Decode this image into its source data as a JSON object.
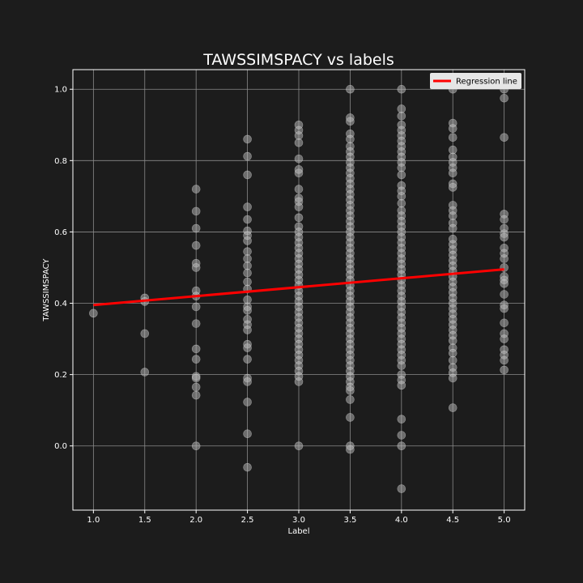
{
  "chart_data": {
    "type": "scatter",
    "title": "TAWSSIMSPACY vs labels",
    "xlabel": "Label",
    "ylabel": "TAWSSIMSPACY",
    "xlim": [
      0.8,
      5.2
    ],
    "ylim": [
      -0.18,
      1.055
    ],
    "xticks": [
      "1.0",
      "1.5",
      "2.0",
      "2.5",
      "3.0",
      "3.5",
      "4.0",
      "4.5",
      "5.0"
    ],
    "yticks": [
      "0.0",
      "0.2",
      "0.4",
      "0.6",
      "0.8",
      "1.0"
    ],
    "grid": true,
    "legend": {
      "position": "top-right",
      "entries": [
        "Regression line"
      ]
    },
    "colors": {
      "background": "#1c1c1c",
      "plot_background": "#1c1c1c",
      "points": "#bdbdbd",
      "regression": "#ff0000",
      "grid": "#8a8a8a",
      "spines": "#ffffff",
      "legend_bg": "#e6e6e6"
    },
    "regression_line": {
      "x": [
        1.0,
        5.0
      ],
      "y": [
        0.395,
        0.495
      ]
    },
    "points": [
      {
        "x": 1.0,
        "y": 0.372
      },
      {
        "x": 1.5,
        "y": 0.415
      },
      {
        "x": 1.5,
        "y": 0.405
      },
      {
        "x": 1.5,
        "y": 0.315
      },
      {
        "x": 1.5,
        "y": 0.207
      },
      {
        "x": 2.0,
        "y": 0.72
      },
      {
        "x": 2.0,
        "y": 0.658
      },
      {
        "x": 2.0,
        "y": 0.61
      },
      {
        "x": 2.0,
        "y": 0.562
      },
      {
        "x": 2.0,
        "y": 0.512
      },
      {
        "x": 2.0,
        "y": 0.5
      },
      {
        "x": 2.0,
        "y": 0.435
      },
      {
        "x": 2.0,
        "y": 0.42
      },
      {
        "x": 2.0,
        "y": 0.39
      },
      {
        "x": 2.0,
        "y": 0.343
      },
      {
        "x": 2.0,
        "y": 0.272
      },
      {
        "x": 2.0,
        "y": 0.243
      },
      {
        "x": 2.0,
        "y": 0.195
      },
      {
        "x": 2.0,
        "y": 0.19
      },
      {
        "x": 2.0,
        "y": 0.165
      },
      {
        "x": 2.0,
        "y": 0.142
      },
      {
        "x": 2.0,
        "y": 0.0
      },
      {
        "x": 2.5,
        "y": 0.86
      },
      {
        "x": 2.5,
        "y": 0.812
      },
      {
        "x": 2.5,
        "y": 0.76
      },
      {
        "x": 2.5,
        "y": 0.67
      },
      {
        "x": 2.5,
        "y": 0.635
      },
      {
        "x": 2.5,
        "y": 0.603
      },
      {
        "x": 2.5,
        "y": 0.59
      },
      {
        "x": 2.5,
        "y": 0.575
      },
      {
        "x": 2.5,
        "y": 0.545
      },
      {
        "x": 2.5,
        "y": 0.525
      },
      {
        "x": 2.5,
        "y": 0.505
      },
      {
        "x": 2.5,
        "y": 0.485
      },
      {
        "x": 2.5,
        "y": 0.46
      },
      {
        "x": 2.5,
        "y": 0.44
      },
      {
        "x": 2.5,
        "y": 0.41
      },
      {
        "x": 2.5,
        "y": 0.39
      },
      {
        "x": 2.5,
        "y": 0.38
      },
      {
        "x": 2.5,
        "y": 0.355
      },
      {
        "x": 2.5,
        "y": 0.34
      },
      {
        "x": 2.5,
        "y": 0.325
      },
      {
        "x": 2.5,
        "y": 0.285
      },
      {
        "x": 2.5,
        "y": 0.275
      },
      {
        "x": 2.5,
        "y": 0.243
      },
      {
        "x": 2.5,
        "y": 0.19
      },
      {
        "x": 2.5,
        "y": 0.18
      },
      {
        "x": 2.5,
        "y": 0.123
      },
      {
        "x": 2.5,
        "y": 0.034
      },
      {
        "x": 2.5,
        "y": -0.06
      },
      {
        "x": 3.0,
        "y": 0.9
      },
      {
        "x": 3.0,
        "y": 0.885
      },
      {
        "x": 3.0,
        "y": 0.87
      },
      {
        "x": 3.0,
        "y": 0.85
      },
      {
        "x": 3.0,
        "y": 0.805
      },
      {
        "x": 3.0,
        "y": 0.775
      },
      {
        "x": 3.0,
        "y": 0.765
      },
      {
        "x": 3.0,
        "y": 0.72
      },
      {
        "x": 3.0,
        "y": 0.695
      },
      {
        "x": 3.0,
        "y": 0.685
      },
      {
        "x": 3.0,
        "y": 0.67
      },
      {
        "x": 3.0,
        "y": 0.64
      },
      {
        "x": 3.0,
        "y": 0.615
      },
      {
        "x": 3.0,
        "y": 0.6
      },
      {
        "x": 3.0,
        "y": 0.585
      },
      {
        "x": 3.0,
        "y": 0.57
      },
      {
        "x": 3.0,
        "y": 0.555
      },
      {
        "x": 3.0,
        "y": 0.54
      },
      {
        "x": 3.0,
        "y": 0.525
      },
      {
        "x": 3.0,
        "y": 0.51
      },
      {
        "x": 3.0,
        "y": 0.495
      },
      {
        "x": 3.0,
        "y": 0.48
      },
      {
        "x": 3.0,
        "y": 0.465
      },
      {
        "x": 3.0,
        "y": 0.45
      },
      {
        "x": 3.0,
        "y": 0.435
      },
      {
        "x": 3.0,
        "y": 0.42
      },
      {
        "x": 3.0,
        "y": 0.405
      },
      {
        "x": 3.0,
        "y": 0.39
      },
      {
        "x": 3.0,
        "y": 0.375
      },
      {
        "x": 3.0,
        "y": 0.36
      },
      {
        "x": 3.0,
        "y": 0.345
      },
      {
        "x": 3.0,
        "y": 0.33
      },
      {
        "x": 3.0,
        "y": 0.315
      },
      {
        "x": 3.0,
        "y": 0.3
      },
      {
        "x": 3.0,
        "y": 0.285
      },
      {
        "x": 3.0,
        "y": 0.27
      },
      {
        "x": 3.0,
        "y": 0.255
      },
      {
        "x": 3.0,
        "y": 0.24
      },
      {
        "x": 3.0,
        "y": 0.225
      },
      {
        "x": 3.0,
        "y": 0.21
      },
      {
        "x": 3.0,
        "y": 0.195
      },
      {
        "x": 3.0,
        "y": 0.18
      },
      {
        "x": 3.0,
        "y": 0.0
      },
      {
        "x": 3.5,
        "y": 1.0
      },
      {
        "x": 3.5,
        "y": 0.92
      },
      {
        "x": 3.5,
        "y": 0.91
      },
      {
        "x": 3.5,
        "y": 0.875
      },
      {
        "x": 3.5,
        "y": 0.86
      },
      {
        "x": 3.5,
        "y": 0.84
      },
      {
        "x": 3.5,
        "y": 0.825
      },
      {
        "x": 3.5,
        "y": 0.81
      },
      {
        "x": 3.5,
        "y": 0.795
      },
      {
        "x": 3.5,
        "y": 0.78
      },
      {
        "x": 3.5,
        "y": 0.765
      },
      {
        "x": 3.5,
        "y": 0.75
      },
      {
        "x": 3.5,
        "y": 0.735
      },
      {
        "x": 3.5,
        "y": 0.72
      },
      {
        "x": 3.5,
        "y": 0.705
      },
      {
        "x": 3.5,
        "y": 0.69
      },
      {
        "x": 3.5,
        "y": 0.675
      },
      {
        "x": 3.5,
        "y": 0.66
      },
      {
        "x": 3.5,
        "y": 0.645
      },
      {
        "x": 3.5,
        "y": 0.63
      },
      {
        "x": 3.5,
        "y": 0.615
      },
      {
        "x": 3.5,
        "y": 0.6
      },
      {
        "x": 3.5,
        "y": 0.585
      },
      {
        "x": 3.5,
        "y": 0.57
      },
      {
        "x": 3.5,
        "y": 0.555
      },
      {
        "x": 3.5,
        "y": 0.54
      },
      {
        "x": 3.5,
        "y": 0.525
      },
      {
        "x": 3.5,
        "y": 0.51
      },
      {
        "x": 3.5,
        "y": 0.495
      },
      {
        "x": 3.5,
        "y": 0.48
      },
      {
        "x": 3.5,
        "y": 0.465
      },
      {
        "x": 3.5,
        "y": 0.45
      },
      {
        "x": 3.5,
        "y": 0.435
      },
      {
        "x": 3.5,
        "y": 0.42
      },
      {
        "x": 3.5,
        "y": 0.405
      },
      {
        "x": 3.5,
        "y": 0.39
      },
      {
        "x": 3.5,
        "y": 0.375
      },
      {
        "x": 3.5,
        "y": 0.36
      },
      {
        "x": 3.5,
        "y": 0.345
      },
      {
        "x": 3.5,
        "y": 0.33
      },
      {
        "x": 3.5,
        "y": 0.315
      },
      {
        "x": 3.5,
        "y": 0.3
      },
      {
        "x": 3.5,
        "y": 0.285
      },
      {
        "x": 3.5,
        "y": 0.27
      },
      {
        "x": 3.5,
        "y": 0.255
      },
      {
        "x": 3.5,
        "y": 0.24
      },
      {
        "x": 3.5,
        "y": 0.225
      },
      {
        "x": 3.5,
        "y": 0.21
      },
      {
        "x": 3.5,
        "y": 0.195
      },
      {
        "x": 3.5,
        "y": 0.18
      },
      {
        "x": 3.5,
        "y": 0.165
      },
      {
        "x": 3.5,
        "y": 0.155
      },
      {
        "x": 3.5,
        "y": 0.13
      },
      {
        "x": 3.5,
        "y": 0.08
      },
      {
        "x": 3.5,
        "y": 0.0
      },
      {
        "x": 3.5,
        "y": -0.01
      },
      {
        "x": 4.0,
        "y": 1.0
      },
      {
        "x": 4.0,
        "y": 0.945
      },
      {
        "x": 4.0,
        "y": 0.925
      },
      {
        "x": 4.0,
        "y": 0.9
      },
      {
        "x": 4.0,
        "y": 0.885
      },
      {
        "x": 4.0,
        "y": 0.87
      },
      {
        "x": 4.0,
        "y": 0.855
      },
      {
        "x": 4.0,
        "y": 0.84
      },
      {
        "x": 4.0,
        "y": 0.825
      },
      {
        "x": 4.0,
        "y": 0.81
      },
      {
        "x": 4.0,
        "y": 0.795
      },
      {
        "x": 4.0,
        "y": 0.78
      },
      {
        "x": 4.0,
        "y": 0.76
      },
      {
        "x": 4.0,
        "y": 0.73
      },
      {
        "x": 4.0,
        "y": 0.715
      },
      {
        "x": 4.0,
        "y": 0.7
      },
      {
        "x": 4.0,
        "y": 0.68
      },
      {
        "x": 4.0,
        "y": 0.66
      },
      {
        "x": 4.0,
        "y": 0.645
      },
      {
        "x": 4.0,
        "y": 0.63
      },
      {
        "x": 4.0,
        "y": 0.615
      },
      {
        "x": 4.0,
        "y": 0.6
      },
      {
        "x": 4.0,
        "y": 0.585
      },
      {
        "x": 4.0,
        "y": 0.57
      },
      {
        "x": 4.0,
        "y": 0.555
      },
      {
        "x": 4.0,
        "y": 0.54
      },
      {
        "x": 4.0,
        "y": 0.525
      },
      {
        "x": 4.0,
        "y": 0.51
      },
      {
        "x": 4.0,
        "y": 0.495
      },
      {
        "x": 4.0,
        "y": 0.48
      },
      {
        "x": 4.0,
        "y": 0.465
      },
      {
        "x": 4.0,
        "y": 0.45
      },
      {
        "x": 4.0,
        "y": 0.435
      },
      {
        "x": 4.0,
        "y": 0.42
      },
      {
        "x": 4.0,
        "y": 0.405
      },
      {
        "x": 4.0,
        "y": 0.39
      },
      {
        "x": 4.0,
        "y": 0.375
      },
      {
        "x": 4.0,
        "y": 0.36
      },
      {
        "x": 4.0,
        "y": 0.345
      },
      {
        "x": 4.0,
        "y": 0.33
      },
      {
        "x": 4.0,
        "y": 0.315
      },
      {
        "x": 4.0,
        "y": 0.3
      },
      {
        "x": 4.0,
        "y": 0.285
      },
      {
        "x": 4.0,
        "y": 0.27
      },
      {
        "x": 4.0,
        "y": 0.255
      },
      {
        "x": 4.0,
        "y": 0.24
      },
      {
        "x": 4.0,
        "y": 0.225
      },
      {
        "x": 4.0,
        "y": 0.2
      },
      {
        "x": 4.0,
        "y": 0.185
      },
      {
        "x": 4.0,
        "y": 0.17
      },
      {
        "x": 4.0,
        "y": 0.075
      },
      {
        "x": 4.0,
        "y": 0.03
      },
      {
        "x": 4.0,
        "y": 0.0
      },
      {
        "x": 4.0,
        "y": -0.12
      },
      {
        "x": 4.5,
        "y": 1.0
      },
      {
        "x": 4.5,
        "y": 0.905
      },
      {
        "x": 4.5,
        "y": 0.89
      },
      {
        "x": 4.5,
        "y": 0.865
      },
      {
        "x": 4.5,
        "y": 0.83
      },
      {
        "x": 4.5,
        "y": 0.81
      },
      {
        "x": 4.5,
        "y": 0.795
      },
      {
        "x": 4.5,
        "y": 0.78
      },
      {
        "x": 4.5,
        "y": 0.765
      },
      {
        "x": 4.5,
        "y": 0.735
      },
      {
        "x": 4.5,
        "y": 0.725
      },
      {
        "x": 4.5,
        "y": 0.675
      },
      {
        "x": 4.5,
        "y": 0.66
      },
      {
        "x": 4.5,
        "y": 0.645
      },
      {
        "x": 4.5,
        "y": 0.625
      },
      {
        "x": 4.5,
        "y": 0.61
      },
      {
        "x": 4.5,
        "y": 0.58
      },
      {
        "x": 4.5,
        "y": 0.565
      },
      {
        "x": 4.5,
        "y": 0.55
      },
      {
        "x": 4.5,
        "y": 0.535
      },
      {
        "x": 4.5,
        "y": 0.52
      },
      {
        "x": 4.5,
        "y": 0.505
      },
      {
        "x": 4.5,
        "y": 0.49
      },
      {
        "x": 4.5,
        "y": 0.475
      },
      {
        "x": 4.5,
        "y": 0.46
      },
      {
        "x": 4.5,
        "y": 0.445
      },
      {
        "x": 4.5,
        "y": 0.43
      },
      {
        "x": 4.5,
        "y": 0.415
      },
      {
        "x": 4.5,
        "y": 0.4
      },
      {
        "x": 4.5,
        "y": 0.385
      },
      {
        "x": 4.5,
        "y": 0.37
      },
      {
        "x": 4.5,
        "y": 0.355
      },
      {
        "x": 4.5,
        "y": 0.34
      },
      {
        "x": 4.5,
        "y": 0.325
      },
      {
        "x": 4.5,
        "y": 0.31
      },
      {
        "x": 4.5,
        "y": 0.295
      },
      {
        "x": 4.5,
        "y": 0.275
      },
      {
        "x": 4.5,
        "y": 0.26
      },
      {
        "x": 4.5,
        "y": 0.24
      },
      {
        "x": 4.5,
        "y": 0.22
      },
      {
        "x": 4.5,
        "y": 0.205
      },
      {
        "x": 4.5,
        "y": 0.19
      },
      {
        "x": 4.5,
        "y": 0.107
      },
      {
        "x": 5.0,
        "y": 1.0
      },
      {
        "x": 5.0,
        "y": 0.975
      },
      {
        "x": 5.0,
        "y": 0.865
      },
      {
        "x": 5.0,
        "y": 0.65
      },
      {
        "x": 5.0,
        "y": 0.635
      },
      {
        "x": 5.0,
        "y": 0.61
      },
      {
        "x": 5.0,
        "y": 0.595
      },
      {
        "x": 5.0,
        "y": 0.585
      },
      {
        "x": 5.0,
        "y": 0.555
      },
      {
        "x": 5.0,
        "y": 0.54
      },
      {
        "x": 5.0,
        "y": 0.525
      },
      {
        "x": 5.0,
        "y": 0.5
      },
      {
        "x": 5.0,
        "y": 0.475
      },
      {
        "x": 5.0,
        "y": 0.465
      },
      {
        "x": 5.0,
        "y": 0.455
      },
      {
        "x": 5.0,
        "y": 0.425
      },
      {
        "x": 5.0,
        "y": 0.395
      },
      {
        "x": 5.0,
        "y": 0.385
      },
      {
        "x": 5.0,
        "y": 0.345
      },
      {
        "x": 5.0,
        "y": 0.315
      },
      {
        "x": 5.0,
        "y": 0.3
      },
      {
        "x": 5.0,
        "y": 0.27
      },
      {
        "x": 5.0,
        "y": 0.255
      },
      {
        "x": 5.0,
        "y": 0.24
      },
      {
        "x": 5.0,
        "y": 0.213
      }
    ]
  }
}
